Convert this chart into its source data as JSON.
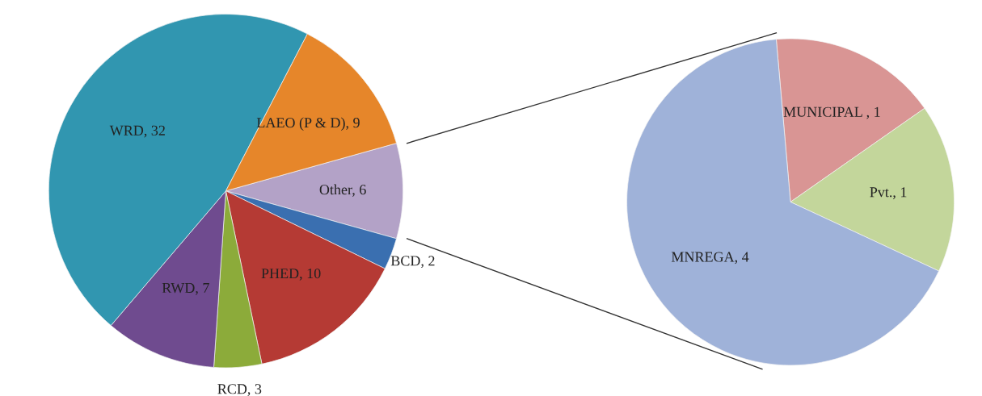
{
  "chart_data": [
    {
      "type": "pie",
      "categories": [
        "Other, 6",
        "BCD, 2",
        "PHED, 10",
        "RCD, 3",
        "RWD, 7",
        "WRD, 32",
        "LAEO (P & D), 9"
      ],
      "values": [
        6,
        2,
        10,
        3,
        7,
        32,
        9
      ],
      "colors": [
        "#b3a2c7",
        "#3a6fb0",
        "#b53a34",
        "#8cab3a",
        "#6f4b8f",
        "#3196b0",
        "#e6862a"
      ]
    },
    {
      "type": "pie",
      "categories": [
        "MUNICIPAL , 1",
        "Pvt., 1",
        "MNREGA, 4"
      ],
      "values": [
        1,
        1,
        4
      ],
      "colors": [
        "#d99594",
        "#c3d69b",
        "#9fb2d9"
      ]
    }
  ]
}
